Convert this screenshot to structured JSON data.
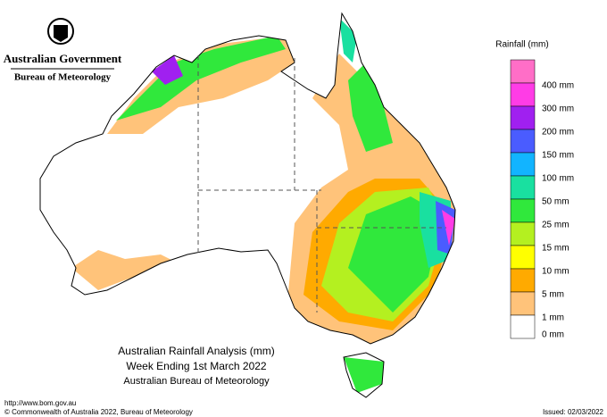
{
  "header": {
    "government": "Australian Government",
    "agency": "Bureau of Meteorology"
  },
  "titles": [
    "Australian Rainfall Analysis (mm)",
    "Week Ending 1st March 2022",
    "Australian Bureau of Meteorology"
  ],
  "legend": {
    "title": "Rainfall (mm)",
    "top_color": "#ff6ec7",
    "items": [
      {
        "label": "400 mm",
        "color": "#ff3ce6"
      },
      {
        "label": "300 mm",
        "color": "#a020f0"
      },
      {
        "label": "200 mm",
        "color": "#4a5cff"
      },
      {
        "label": "150 mm",
        "color": "#12b4ff"
      },
      {
        "label": "100 mm",
        "color": "#19e0a0"
      },
      {
        "label": "50 mm",
        "color": "#30e83c"
      },
      {
        "label": "25 mm",
        "color": "#b4f020"
      },
      {
        "label": "15 mm",
        "color": "#ffff00"
      },
      {
        "label": "10 mm",
        "color": "#ffaa00"
      },
      {
        "label": "5 mm",
        "color": "#ffc37a"
      },
      {
        "label": "1 mm",
        "color": "#ffffff"
      }
    ],
    "zero_label": "0 mm"
  },
  "footer": {
    "url": "http://www.bom.gov.au",
    "copyright": "© Commonwealth of Australia 2022, Bureau of Meteorology",
    "issued": "Issued: 02/03/2022"
  }
}
